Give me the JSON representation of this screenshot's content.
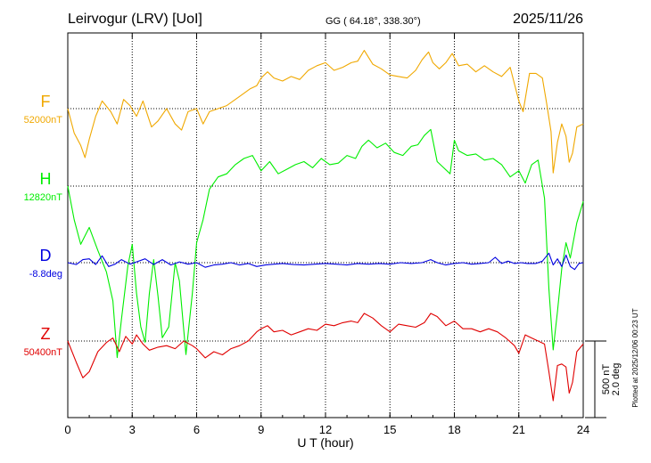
{
  "header": {
    "station": "Leirvogur (LRV)  [UoI]",
    "coords": "GG ( 64.18°, 338.30°)",
    "date": "2025/11/26"
  },
  "footer": {
    "plotted": "Plotted at 2025/12/06 00:23 UT"
  },
  "scale_bar": {
    "nt": "500 nT",
    "deg": "2.0 deg"
  },
  "chart_data": {
    "type": "line",
    "xlabel": "U T (hour)",
    "xlim": [
      0,
      24
    ],
    "xticks": [
      "0",
      "3",
      "6",
      "9",
      "12",
      "15",
      "18",
      "21",
      "24"
    ],
    "grid": true,
    "nt_per_scale_bar": 500,
    "series": [
      {
        "name": "F",
        "baseline_label": "52000nT",
        "baseline": 52000,
        "color": "#f0a800",
        "x": [
          0,
          0.3,
          0.6,
          0.8,
          1.0,
          1.3,
          1.6,
          2.0,
          2.3,
          2.6,
          2.9,
          3.2,
          3.5,
          3.9,
          4.2,
          4.6,
          5.0,
          5.3,
          5.6,
          6.0,
          6.3,
          6.6,
          7.0,
          7.4,
          7.8,
          8.2,
          8.5,
          8.8,
          9.0,
          9.3,
          9.6,
          10.0,
          10.4,
          10.8,
          11.2,
          11.6,
          12.0,
          12.4,
          12.8,
          13.2,
          13.5,
          13.8,
          14.2,
          14.6,
          15.0,
          15.4,
          15.8,
          16.2,
          16.5,
          16.8,
          17.0,
          17.3,
          17.6,
          17.9,
          18.2,
          18.6,
          19.0,
          19.4,
          19.8,
          20.2,
          20.6,
          21.0,
          21.2,
          21.5,
          21.8,
          22.1,
          22.3,
          22.5,
          22.6,
          22.8,
          23.0,
          23.2,
          23.35,
          23.5,
          23.7,
          24.0
        ],
        "values": [
          52000,
          51840,
          51760,
          51680,
          51800,
          51950,
          52050,
          51980,
          51900,
          52060,
          52020,
          51950,
          52050,
          51880,
          51920,
          52000,
          51900,
          51860,
          51980,
          52000,
          51900,
          51980,
          52000,
          52020,
          52060,
          52100,
          52130,
          52150,
          52200,
          52240,
          52200,
          52180,
          52210,
          52190,
          52250,
          52280,
          52300,
          52250,
          52270,
          52300,
          52310,
          52380,
          52290,
          52260,
          52220,
          52210,
          52200,
          52250,
          52320,
          52370,
          52300,
          52260,
          52300,
          52360,
          52280,
          52290,
          52240,
          52280,
          52240,
          52210,
          52270,
          52050,
          51980,
          52230,
          52230,
          52200,
          52030,
          51850,
          51580,
          51780,
          51900,
          51820,
          51650,
          51710,
          51880,
          51900
        ]
      },
      {
        "name": "H",
        "baseline_label": "12820nT",
        "baseline": 12820,
        "color": "#00ee00",
        "x": [
          0,
          0.3,
          0.6,
          1.0,
          1.4,
          1.8,
          2.1,
          2.3,
          2.5,
          2.8,
          3.0,
          3.2,
          3.4,
          3.6,
          3.8,
          4.0,
          4.2,
          4.4,
          4.7,
          5.0,
          5.2,
          5.5,
          5.8,
          6.0,
          6.3,
          6.6,
          7.0,
          7.4,
          7.8,
          8.2,
          8.6,
          9.0,
          9.4,
          9.8,
          10.2,
          10.6,
          11.0,
          11.4,
          11.8,
          12.2,
          12.6,
          13.0,
          13.4,
          13.7,
          14.0,
          14.4,
          14.8,
          15.2,
          15.6,
          16.0,
          16.3,
          16.6,
          16.9,
          17.2,
          17.5,
          17.8,
          18.0,
          18.2,
          18.6,
          19.0,
          19.4,
          19.8,
          20.2,
          20.6,
          21.0,
          21.3,
          21.6,
          21.9,
          22.2,
          22.4,
          22.6,
          22.8,
          23.0,
          23.2,
          23.4,
          23.7,
          24.0
        ],
        "values": [
          12820,
          12600,
          12440,
          12550,
          12400,
          12260,
          12070,
          11700,
          11950,
          12300,
          12440,
          12120,
          11900,
          11800,
          12120,
          12340,
          12100,
          11830,
          11900,
          12320,
          12200,
          11720,
          12120,
          12450,
          12600,
          12800,
          12880,
          12900,
          12960,
          13000,
          13020,
          12920,
          12980,
          12900,
          12930,
          12960,
          12980,
          12940,
          13000,
          12960,
          12970,
          13020,
          13000,
          13080,
          13120,
          13070,
          13100,
          13040,
          13020,
          13080,
          13090,
          13150,
          13190,
          12980,
          12940,
          12900,
          13120,
          13050,
          13020,
          13030,
          12990,
          13000,
          12960,
          12880,
          12920,
          12840,
          12960,
          12990,
          12740,
          12150,
          11750,
          12000,
          12280,
          12450,
          12350,
          12580,
          12720
        ]
      },
      {
        "name": "D",
        "baseline_label": "-8.8deg",
        "baseline": -8.8,
        "color": "#0000e0",
        "x": [
          0,
          0.4,
          0.7,
          1.0,
          1.3,
          1.6,
          1.9,
          2.2,
          2.5,
          2.9,
          3.2,
          3.6,
          4.0,
          4.4,
          4.8,
          5.2,
          5.6,
          6.0,
          6.4,
          6.8,
          7.2,
          7.6,
          8.0,
          8.4,
          8.8,
          9.2,
          9.6,
          10.0,
          10.5,
          11.0,
          11.5,
          12.0,
          12.5,
          13.0,
          13.5,
          14.0,
          14.5,
          15.0,
          15.5,
          16.0,
          16.5,
          16.9,
          17.2,
          17.6,
          18.0,
          18.4,
          18.8,
          19.2,
          19.6,
          19.9,
          20.2,
          20.5,
          20.8,
          21.1,
          21.4,
          21.8,
          22.1,
          22.4,
          22.6,
          22.8,
          23.0,
          23.2,
          23.4,
          23.6,
          23.8,
          24.0
        ],
        "values": [
          -8.8,
          -8.85,
          -8.72,
          -8.7,
          -8.85,
          -8.62,
          -8.9,
          -8.84,
          -8.72,
          -8.84,
          -8.78,
          -8.7,
          -8.85,
          -8.72,
          -8.86,
          -8.78,
          -8.84,
          -8.8,
          -8.92,
          -8.86,
          -8.84,
          -8.8,
          -8.86,
          -8.82,
          -8.9,
          -8.86,
          -8.84,
          -8.82,
          -8.85,
          -8.86,
          -8.84,
          -8.82,
          -8.84,
          -8.86,
          -8.82,
          -8.84,
          -8.82,
          -8.84,
          -8.8,
          -8.82,
          -8.8,
          -8.72,
          -8.8,
          -8.86,
          -8.82,
          -8.8,
          -8.84,
          -8.82,
          -8.8,
          -8.66,
          -8.82,
          -8.76,
          -8.82,
          -8.8,
          -8.82,
          -8.82,
          -8.76,
          -8.55,
          -8.86,
          -8.7,
          -8.9,
          -8.6,
          -8.9,
          -8.98,
          -8.82,
          -8.8
        ]
      },
      {
        "name": "Z",
        "baseline_label": "50400nT",
        "baseline": 50400,
        "color": "#e00000",
        "x": [
          0,
          0.4,
          0.7,
          1.0,
          1.4,
          1.8,
          2.1,
          2.4,
          2.7,
          3.0,
          3.2,
          3.5,
          3.8,
          4.2,
          4.6,
          5.0,
          5.4,
          5.8,
          6.0,
          6.4,
          6.8,
          7.2,
          7.6,
          8.0,
          8.4,
          8.8,
          9.0,
          9.3,
          9.6,
          10.0,
          10.4,
          10.8,
          11.2,
          11.6,
          12.0,
          12.4,
          12.8,
          13.2,
          13.5,
          13.8,
          14.2,
          14.6,
          15.0,
          15.4,
          15.8,
          16.2,
          16.6,
          16.9,
          17.2,
          17.6,
          18.0,
          18.4,
          18.8,
          19.2,
          19.6,
          20.0,
          20.4,
          20.8,
          21.0,
          21.3,
          21.6,
          21.9,
          22.2,
          22.4,
          22.6,
          22.8,
          23.0,
          23.2,
          23.35,
          23.5,
          23.7,
          24.0
        ],
        "values": [
          50400,
          50260,
          50160,
          50200,
          50330,
          50390,
          50420,
          50330,
          50430,
          50380,
          50440,
          50380,
          50340,
          50360,
          50370,
          50350,
          50400,
          50370,
          50350,
          50290,
          50330,
          50310,
          50350,
          50370,
          50400,
          50460,
          50480,
          50500,
          50460,
          50470,
          50440,
          50460,
          50480,
          50470,
          50510,
          50500,
          50520,
          50530,
          50520,
          50580,
          50550,
          50500,
          50460,
          50510,
          50500,
          50490,
          50520,
          50580,
          50560,
          50500,
          50530,
          50480,
          50480,
          50460,
          50480,
          50460,
          50420,
          50370,
          50320,
          50440,
          50420,
          50400,
          50380,
          50200,
          50010,
          50240,
          50250,
          50230,
          50060,
          50130,
          50330,
          50380
        ]
      }
    ]
  }
}
